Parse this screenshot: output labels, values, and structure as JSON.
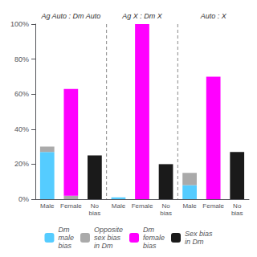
{
  "chart_data": {
    "type": "bar",
    "stacked": true,
    "grid": false,
    "legend": "bottom",
    "annotations": [
      "Ag Auto : Dm Auto",
      "Ag X : Dm X",
      "Auto : X"
    ],
    "categories": [
      "Male",
      "Female",
      "No\nbias",
      "Male",
      "Female",
      "No\nbias",
      "Male",
      "Female",
      "No\nbias"
    ],
    "series": [
      {
        "name": "Dm\nmale\nbias",
        "color": "#55CCFF",
        "values": [
          27,
          0,
          0,
          1,
          0,
          0,
          8,
          0,
          0
        ]
      },
      {
        "name": "Opposite\nsex bias\nin Dm",
        "color": "#AAAAAA",
        "values": [
          3,
          2,
          0,
          0,
          0,
          0,
          7,
          0,
          0
        ]
      },
      {
        "name": "Dm\nfemale\nbias",
        "color": "#FF00FF",
        "values": [
          0,
          61,
          0,
          0,
          100,
          0,
          0,
          70,
          0
        ]
      },
      {
        "name": "Sex bias\nin Dm",
        "color": "#1A1A1A",
        "values": [
          0,
          0,
          25,
          0,
          0,
          20,
          0,
          0,
          27
        ]
      }
    ],
    "ylim": [
      0,
      100
    ],
    "yticks": [
      {
        "value": 0,
        "label": "0%"
      },
      {
        "value": 20,
        "label": "20%"
      },
      {
        "value": 40,
        "label": "40%"
      },
      {
        "value": 60,
        "label": "60%"
      },
      {
        "value": 80,
        "label": "80%"
      },
      {
        "value": 100,
        "label": "100%"
      }
    ]
  }
}
